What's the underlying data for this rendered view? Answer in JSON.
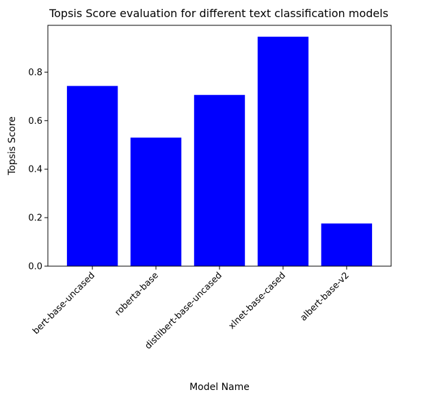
{
  "chart_data": {
    "type": "bar",
    "title": "Topsis Score evaluation for different text classification models",
    "xlabel": "Model Name",
    "ylabel": "Topsis Score",
    "categories": [
      "bert-base-uncased",
      "roberta-base",
      "distilbert-base-uncased",
      "xlnet-base-cased",
      "albert-base-v2"
    ],
    "values": [
      0.743,
      0.53,
      0.706,
      0.946,
      0.176
    ],
    "ylim": [
      0,
      0.993
    ],
    "yticks": [
      0.0,
      0.2,
      0.4,
      0.6,
      0.8
    ],
    "ytick_labels": [
      "0.0",
      "0.2",
      "0.4",
      "0.6",
      "0.8"
    ],
    "bar_color": "#0000ff",
    "grid": false,
    "legend": "none"
  }
}
